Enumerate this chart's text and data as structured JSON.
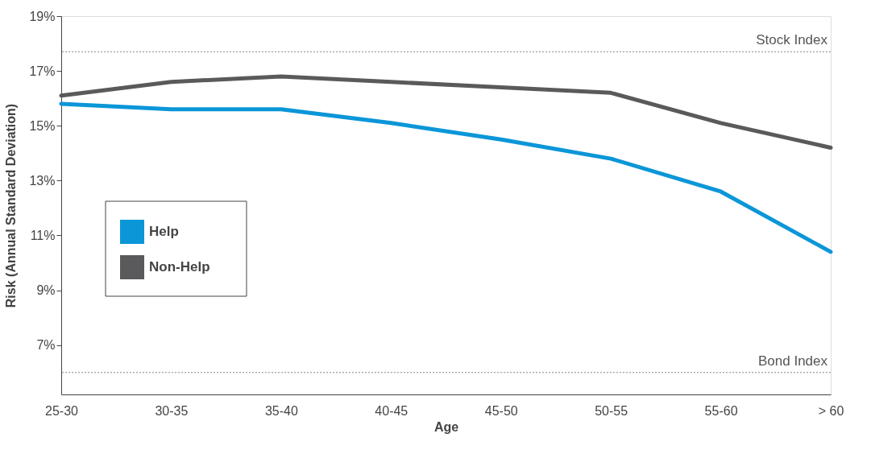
{
  "chart_data": {
    "type": "line",
    "xlabel": "Age",
    "ylabel": "Risk (Annual Standard Deviation)",
    "categories": [
      "25-30",
      "30-35",
      "35-40",
      "40-45",
      "45-50",
      "50-55",
      "55-60",
      "> 60"
    ],
    "series": [
      {
        "name": "Help",
        "color": "#0b96d8",
        "values": [
          15.8,
          15.6,
          15.6,
          15.1,
          14.5,
          13.8,
          12.6,
          10.4
        ]
      },
      {
        "name": "Non-Help",
        "color": "#5a5a5c",
        "values": [
          16.1,
          16.6,
          16.8,
          16.6,
          16.4,
          16.2,
          15.1,
          14.2
        ]
      }
    ],
    "ylim": [
      5.2,
      19
    ],
    "yticks": [
      {
        "value": 7,
        "label": "7%"
      },
      {
        "value": 9,
        "label": "9%"
      },
      {
        "value": 11,
        "label": "11%"
      },
      {
        "value": 13,
        "label": "13%"
      },
      {
        "value": 15,
        "label": "15%"
      },
      {
        "value": 17,
        "label": "17%"
      },
      {
        "value": 19,
        "label": "19%"
      }
    ],
    "ref_lines": [
      {
        "axis": "y",
        "value": 17.7,
        "label": "Stock Index",
        "color": "#888888",
        "line_style": "dotted"
      },
      {
        "axis": "y",
        "value": 6.0,
        "label": "Bond Index",
        "color": "#888888",
        "line_style": "dotted"
      }
    ],
    "legend": "left",
    "grid": false
  }
}
